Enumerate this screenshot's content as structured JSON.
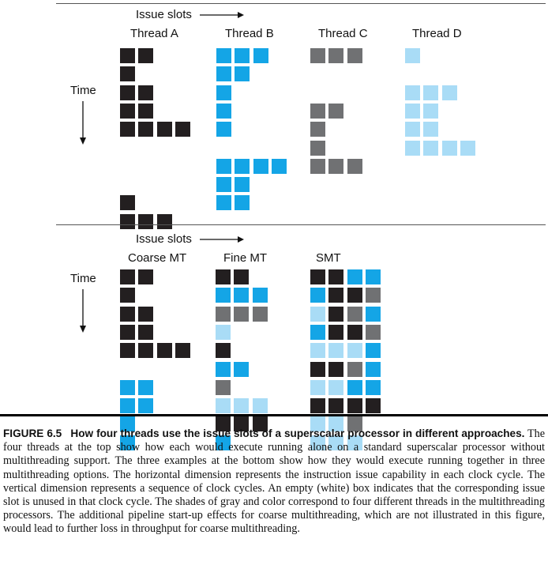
{
  "colors": {
    "A": "#231f20",
    "B": "#14a5e6",
    "C": "#707173",
    "D": "#a9dcf6"
  },
  "top_panel": {
    "issue_slots_label": "Issue slots",
    "time_label": "Time",
    "threads": [
      {
        "label": "Thread A",
        "id": "A",
        "rows": [
          "XX..",
          "X...",
          "XX..",
          "XX..",
          "XXXX",
          "....",
          "....",
          "....",
          "X...",
          "XXX."
        ]
      },
      {
        "label": "Thread B",
        "id": "B",
        "rows": [
          "XXX.",
          "XX..",
          "X...",
          "X...",
          "X...",
          "....",
          "XXXX",
          "XX..",
          "XX..",
          "...."
        ]
      },
      {
        "label": "Thread C",
        "id": "C",
        "rows": [
          "XXX.",
          "....",
          "....",
          "XX..",
          "X...",
          "X...",
          "XXX.",
          "....",
          "....",
          "...."
        ]
      },
      {
        "label": "Thread D",
        "id": "D",
        "rows": [
          "X...",
          "....",
          "XXX.",
          "XX..",
          "XX..",
          "XXXX",
          "....",
          "....",
          "....",
          "...."
        ]
      }
    ]
  },
  "bottom_panel": {
    "issue_slots_label": "Issue slots",
    "time_label": "Time",
    "approaches": [
      {
        "label": "Coarse MT",
        "rows": [
          "AA..",
          "A...",
          "AA..",
          "AA..",
          "AAAA",
          "....",
          "BB..",
          "BB..",
          "B...",
          "B..."
        ]
      },
      {
        "label": "Fine MT",
        "rows": [
          "AA..",
          "BBB.",
          "CCC.",
          "D...",
          "A...",
          "BB..",
          "C...",
          "DDD.",
          "AAA.",
          "B..."
        ]
      },
      {
        "label": "SMT",
        "rows": [
          "AABB",
          "BAAC",
          "DACB",
          "BAAC",
          "DDDB",
          "AACB",
          "DDBB",
          "AAAA",
          "DDC.",
          "DDD."
        ]
      }
    ]
  },
  "caption": {
    "figure_label": "FIGURE 6.5",
    "figure_title": "How four threads use the issue slots of a superscalar processor in different approaches.",
    "body": "The four threads at the top show how each would execute running alone on a standard superscalar processor without multithreading support. The three examples at the bottom show how they would execute running together in three multithreading options. The horizontal dimension represents the instruction issue capability in each clock cycle. The vertical dimension represents a sequence of clock cycles. An empty (white) box indicates that the corresponding issue slot is unused in that clock cycle. The shades of gray and color correspond to four different threads in the multithreading processors. The additional pipeline start-up effects for coarse multithreading, which are not illustrated in this figure, would lead to further loss in throughput for coarse multithreading."
  }
}
